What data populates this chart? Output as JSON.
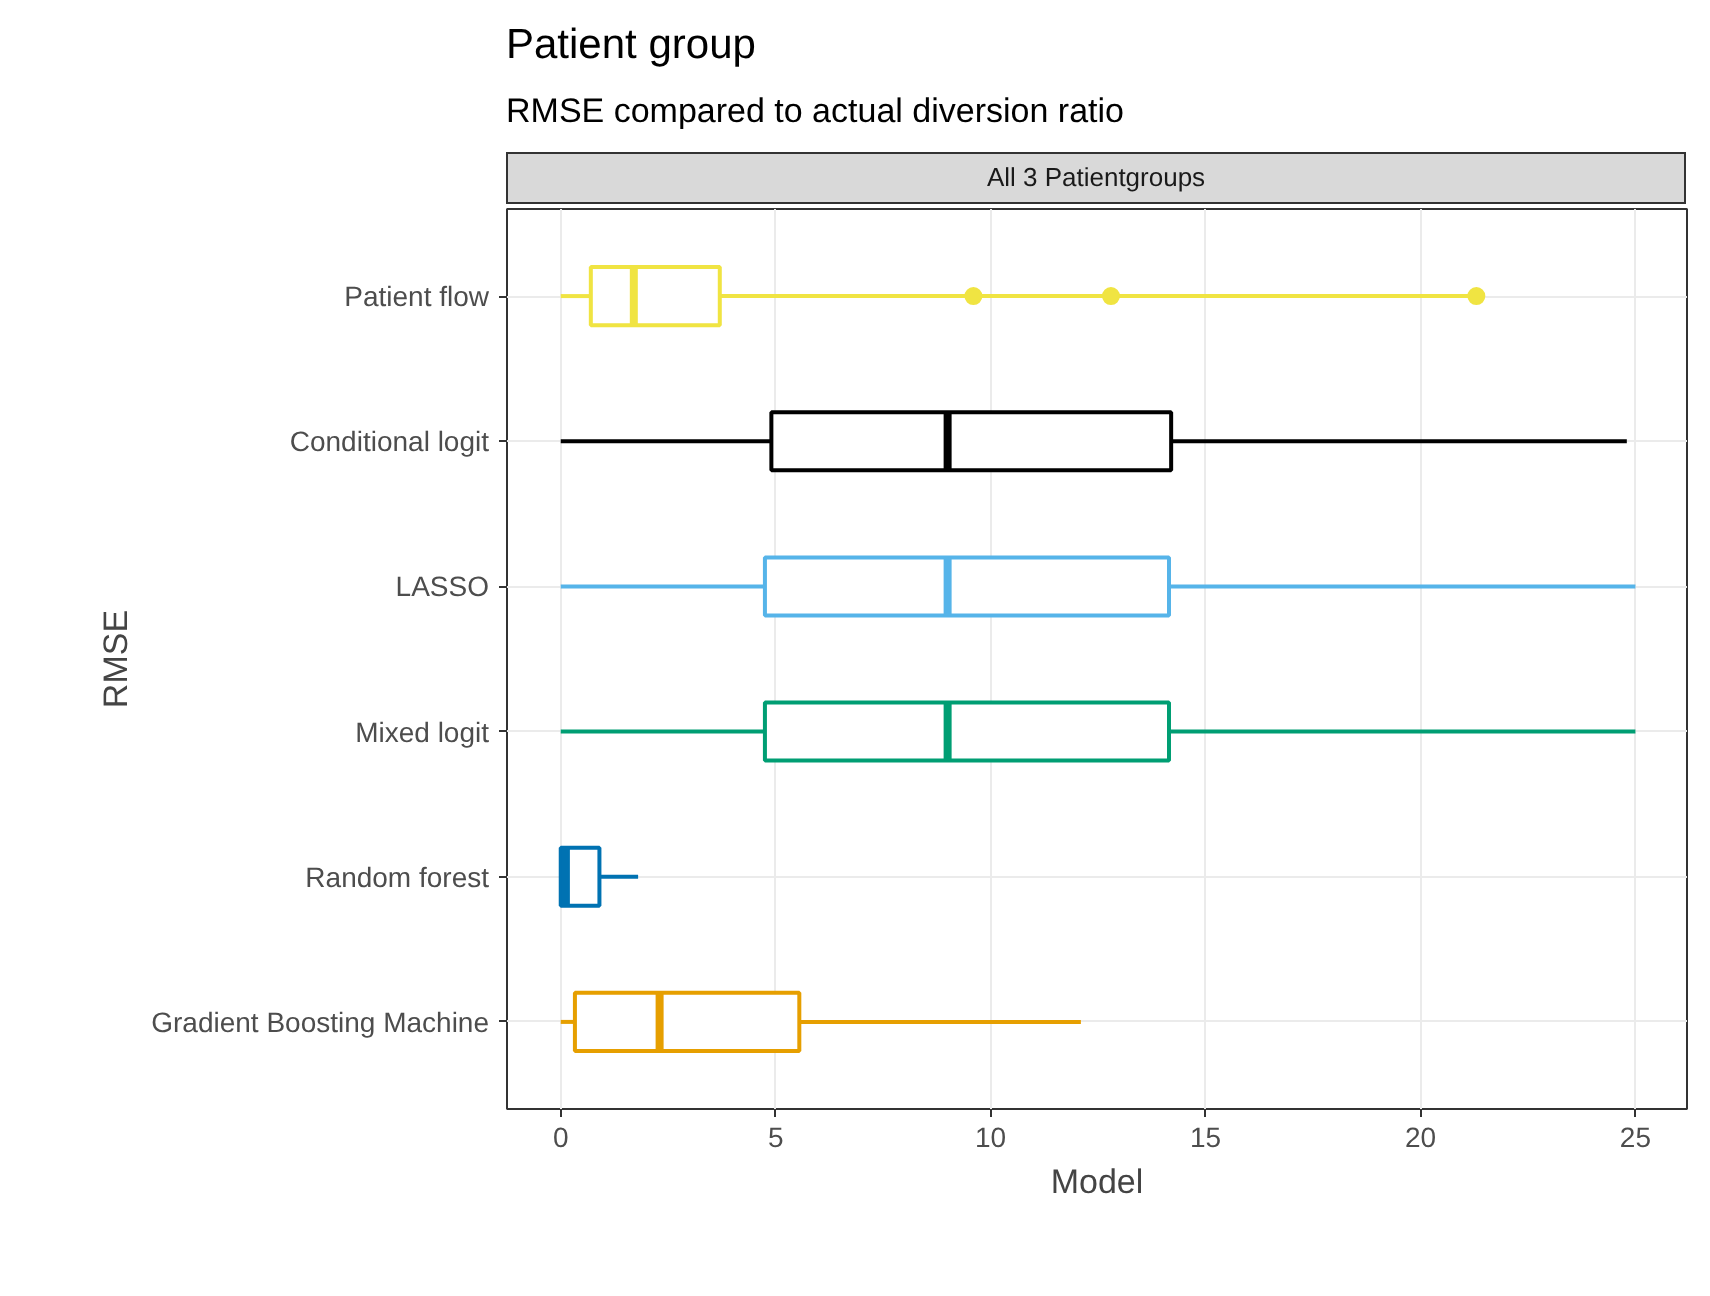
{
  "chart_data": {
    "type": "box",
    "orientation": "horizontal",
    "title": "Patient group",
    "subtitle": "RMSE compared to actual diversion ratio",
    "annotations": [
      "All 3 Patientgroups"
    ],
    "xlabel": "Model",
    "ylabel": "RMSE",
    "categories": [
      "Patient flow",
      "Conditional logit",
      "LASSO",
      "Mixed logit",
      "Random forest",
      "Gradient Boosting Machine"
    ],
    "colors": [
      "#f0e442",
      "#000000",
      "#56b4e9",
      "#009e73",
      "#0072b2",
      "#e69f00"
    ],
    "boxes": [
      {
        "low": 0,
        "q1": 0.7,
        "median": 1.7,
        "q3": 3.7,
        "high": 21.3,
        "outliers": [
          9.6,
          12.8,
          21.3
        ]
      },
      {
        "low": 0,
        "q1": 4.9,
        "median": 9.0,
        "q3": 14.2,
        "high": 24.8
      },
      {
        "low": 0,
        "q1": 4.75,
        "median": 9.0,
        "q3": 14.15,
        "high": 25.0
      },
      {
        "low": 0,
        "q1": 4.75,
        "median": 9.0,
        "q3": 14.15,
        "high": 25.0
      },
      {
        "low": 0,
        "q1": 0,
        "median": 0.12,
        "q3": 0.9,
        "high": 1.8
      },
      {
        "low": 0,
        "q1": 0.33,
        "median": 2.3,
        "q3": 5.55,
        "high": 12.1
      }
    ],
    "xlim": [
      -1.25,
      26.2
    ],
    "xticks": [
      0,
      5,
      10,
      15,
      20,
      25
    ],
    "grid": true
  }
}
